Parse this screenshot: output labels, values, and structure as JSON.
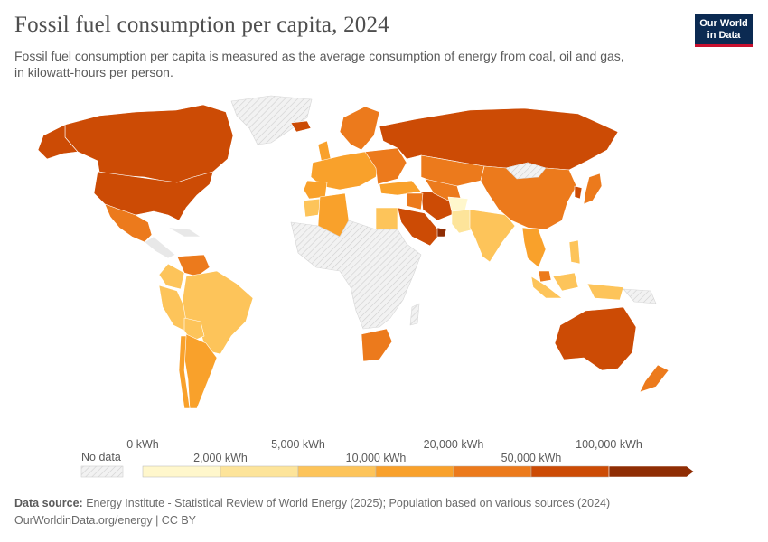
{
  "header": {
    "title": "Fossil fuel consumption per capita, 2024",
    "subtitle_line1": "Fossil fuel consumption per capita is measured as the average consumption of energy from coal, oil and gas,",
    "subtitle_line2": "in kilowatt-hours per person."
  },
  "logo": {
    "line1": "Our World",
    "line2": "in Data",
    "bg_color": "#0b2a52",
    "accent_color": "#c8102e"
  },
  "legend": {
    "no_data_label": "No data",
    "bins": [
      {
        "from": "0 kWh",
        "to": "2,000 kWh",
        "color": "#fff7cc"
      },
      {
        "from": "2,000 kWh",
        "to": "5,000 kWh",
        "color": "#fde49a"
      },
      {
        "from": "5,000 kWh",
        "to": "10,000 kWh",
        "color": "#fdc45a"
      },
      {
        "from": "10,000 kWh",
        "to": "20,000 kWh",
        "color": "#f9a12b"
      },
      {
        "from": "20,000 kWh",
        "to": "50,000 kWh",
        "color": "#ec7a1c"
      },
      {
        "from": "50,000 kWh",
        "to": "100,000 kWh",
        "color": "#cc4b05"
      },
      {
        "from": "100,000 kWh",
        "to": "",
        "color": "#8f2d04"
      }
    ],
    "tick_labels": [
      "0 kWh",
      "2,000 kWh",
      "5,000 kWh",
      "10,000 kWh",
      "20,000 kWh",
      "50,000 kWh",
      "100,000 kWh"
    ]
  },
  "footer": {
    "source_label": "Data source:",
    "source_text": "Energy Institute - Statistical Review of World Energy (2025); Population based on various sources (2024)",
    "url_license": "OurWorldinData.org/energy | CC BY"
  },
  "map_colors": {
    "no_data": "#e8e8e8",
    "border": "#ffffff"
  }
}
